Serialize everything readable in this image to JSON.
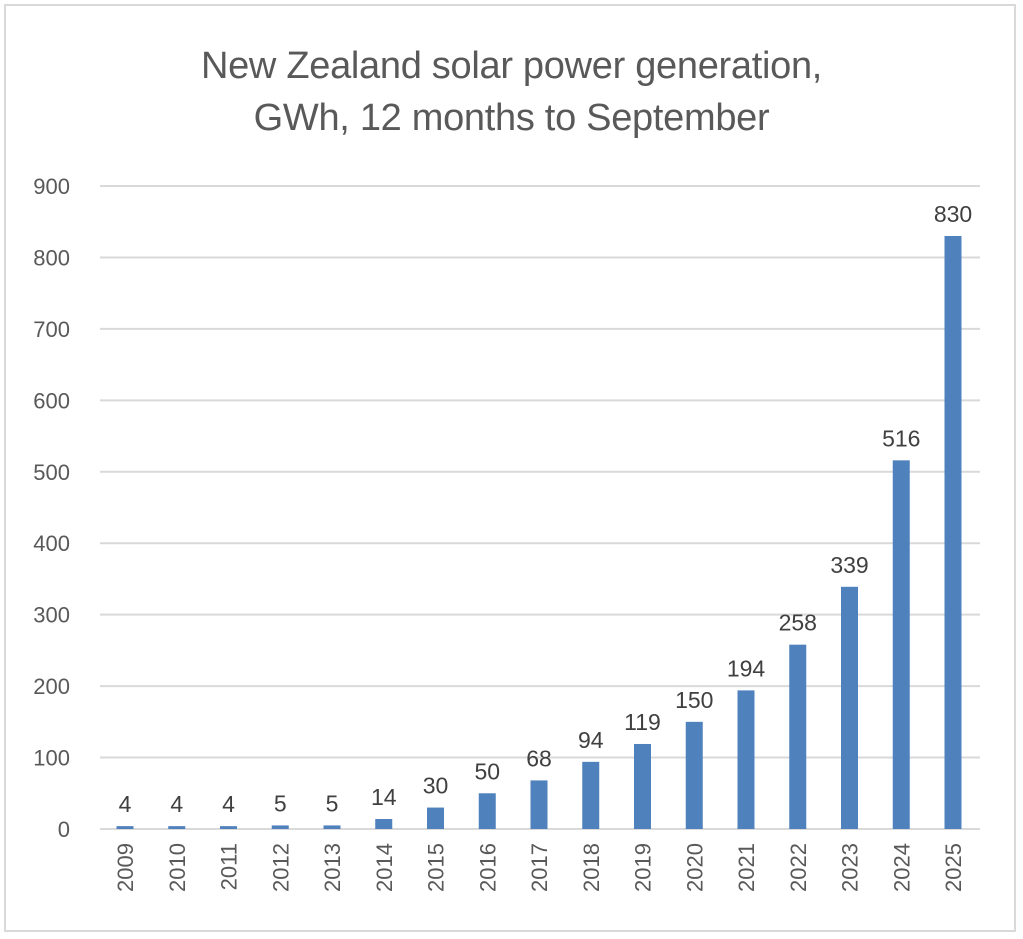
{
  "chart_data": {
    "type": "bar",
    "title": "New Zealand solar power generation, GWh, 12 months to September",
    "title_lines": [
      "New Zealand solar power generation,",
      "GWh, 12 months to September"
    ],
    "xlabel": "",
    "ylabel": "",
    "categories": [
      "2009",
      "2010",
      "2011",
      "2012",
      "2013",
      "2014",
      "2015",
      "2016",
      "2017",
      "2018",
      "2019",
      "2020",
      "2021",
      "2022",
      "2023",
      "2024",
      "2025"
    ],
    "values": [
      4,
      4,
      4,
      5,
      5,
      14,
      30,
      50,
      68,
      94,
      119,
      150,
      194,
      258,
      339,
      516,
      830
    ],
    "data_labels": [
      "4",
      "4",
      "4",
      "5",
      "5",
      "14",
      "30",
      "50",
      "68",
      "94",
      "119",
      "150",
      "194",
      "258",
      "339",
      "516",
      "830"
    ],
    "ylim": [
      0,
      900
    ],
    "yticks": [
      0,
      100,
      200,
      300,
      400,
      500,
      600,
      700,
      800,
      900
    ],
    "ytick_labels": [
      "0",
      "100",
      "200",
      "300",
      "400",
      "500",
      "600",
      "700",
      "800",
      "900"
    ],
    "grid": true,
    "legend": "none",
    "bar_color": "#4f81bd",
    "x_tick_rotation": "vertical"
  }
}
